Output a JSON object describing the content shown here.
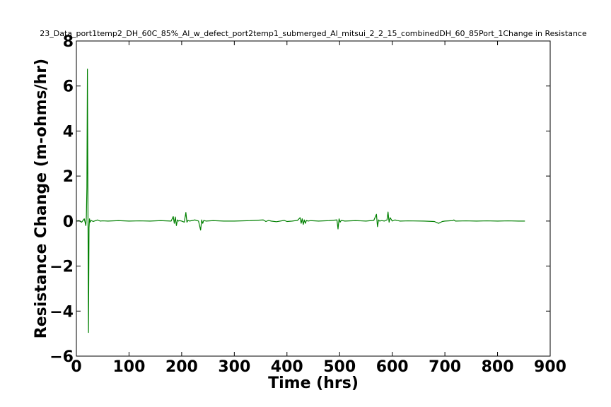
{
  "chart_data": {
    "type": "line",
    "title": "23_Data_port1temp2_DH_60C_85%_Al_w_defect_port2temp1_submerged_Al_mitsui_2_2_15_combinedDH_60_85Port_1Change in Resistance",
    "xlabel": "Time (hrs)",
    "ylabel": "Resistance Change (m-ohms/hr)",
    "xlim": [
      0,
      900
    ],
    "ylim": [
      -6,
      8
    ],
    "xticks": [
      0,
      100,
      200,
      300,
      400,
      500,
      600,
      700,
      800,
      900
    ],
    "yticks": [
      -6,
      -4,
      -2,
      0,
      2,
      4,
      6,
      8
    ],
    "xtick_labels": [
      "0",
      "100",
      "200",
      "300",
      "400",
      "500",
      "600",
      "700",
      "800",
      "900"
    ],
    "ytick_labels": [
      "−6",
      "−4",
      "−2",
      "0",
      "2",
      "4",
      "6",
      "8"
    ],
    "grid": false,
    "legend": "none",
    "series": [
      {
        "color": "#008000",
        "x": [
          0,
          5,
          10,
          15,
          18,
          19,
          20,
          21,
          22,
          23,
          24,
          25,
          26,
          28,
          32,
          40,
          45,
          50,
          60,
          80,
          100,
          120,
          140,
          160,
          180,
          184,
          186,
          188,
          190,
          192,
          194,
          196,
          200,
          205,
          208,
          210,
          212,
          215,
          225,
          232,
          236,
          238,
          240,
          242,
          246,
          260,
          280,
          300,
          330,
          355,
          360,
          365,
          370,
          380,
          395,
          400,
          410,
          420,
          425,
          427,
          429,
          431,
          433,
          435,
          437,
          440,
          445,
          460,
          480,
          495,
          497,
          499,
          501,
          503,
          510,
          530,
          550,
          565,
          570,
          572,
          574,
          576,
          580,
          585,
          590,
          592,
          594,
          596,
          600,
          605,
          610,
          615,
          630,
          660,
          680,
          688,
          695,
          700,
          715,
          717,
          720,
          740,
          760,
          780,
          800,
          820,
          840,
          852
        ],
        "y": [
          0.0,
          0.02,
          -0.05,
          0.1,
          -0.2,
          0.2,
          1.5,
          6.75,
          0.5,
          -4.95,
          -0.3,
          0.1,
          -0.05,
          0.03,
          -0.02,
          0.05,
          0.0,
          0.01,
          0.0,
          0.02,
          0.0,
          0.01,
          0.0,
          0.02,
          0.0,
          0.2,
          -0.1,
          0.18,
          -0.2,
          0.05,
          0.0,
          0.02,
          0.0,
          -0.05,
          0.38,
          -0.05,
          0.03,
          0.0,
          0.05,
          0.0,
          -0.4,
          0.05,
          -0.1,
          0.03,
          0.0,
          0.02,
          0.0,
          0.0,
          0.02,
          0.05,
          -0.02,
          0.03,
          0.0,
          -0.03,
          0.03,
          -0.02,
          0.0,
          0.03,
          0.15,
          -0.1,
          0.1,
          -0.15,
          0.05,
          -0.1,
          0.03,
          0.0,
          0.02,
          0.0,
          0.02,
          0.05,
          -0.35,
          0.1,
          -0.05,
          0.03,
          0.0,
          0.02,
          0.0,
          0.03,
          0.3,
          -0.25,
          0.05,
          0.0,
          0.02,
          0.0,
          0.05,
          0.4,
          -0.05,
          0.15,
          0.0,
          0.05,
          0.02,
          0.0,
          0.01,
          0.0,
          -0.02,
          -0.1,
          -0.02,
          0.0,
          0.02,
          0.05,
          0.0,
          0.01,
          0.0,
          0.01,
          0.0,
          0.01,
          0.0,
          0.0
        ]
      }
    ]
  }
}
